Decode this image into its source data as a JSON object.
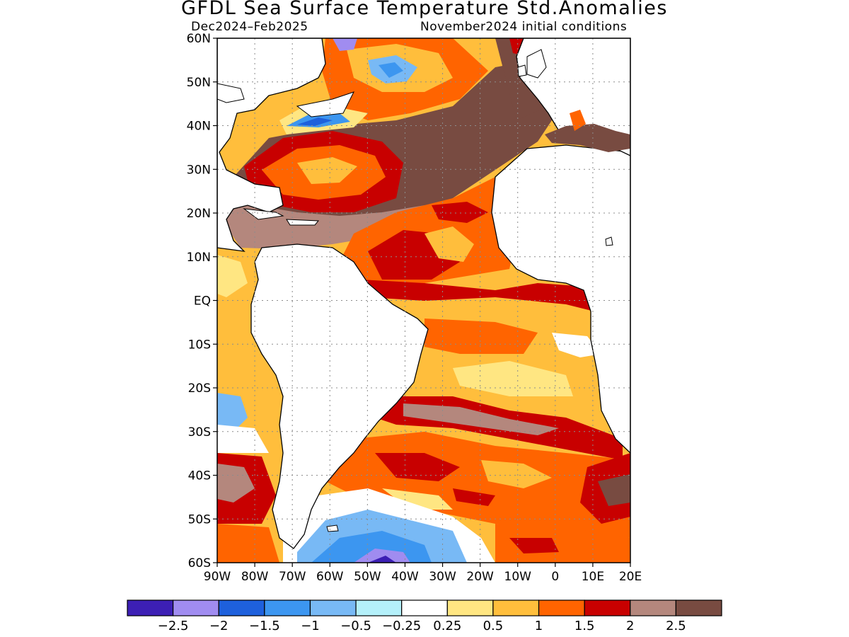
{
  "title": "GFDL Sea Surface Temperature Std.Anomalies",
  "season": "Dec2024–Feb2025",
  "init": "November2024 initial conditions",
  "map": {
    "lon_labels": [
      "90W",
      "80W",
      "70W",
      "60W",
      "50W",
      "40W",
      "30W",
      "20W",
      "10W",
      "0",
      "10E",
      "20E"
    ],
    "lat_labels": [
      "60N",
      "50N",
      "40N",
      "30N",
      "20N",
      "10N",
      "EQ",
      "10S",
      "20S",
      "30S",
      "40S",
      "50S",
      "60S"
    ],
    "lon_range": [
      -90,
      20
    ],
    "lat_range": [
      -60,
      60
    ],
    "grid": "dotted"
  },
  "colorbar": {
    "colors": [
      "#3c1fb4",
      "#a08cf0",
      "#1e60dc",
      "#3c96f0",
      "#78b9f5",
      "#b4f0fa",
      "#ffffff",
      "#ffe682",
      "#ffbe3c",
      "#ff6400",
      "#c80000",
      "#b4877d",
      "#784b41"
    ],
    "labels": [
      "−2.5",
      "−2",
      "−1.5",
      "−1",
      "−0.5",
      "−0.25",
      "0.25",
      "0.5",
      "1",
      "1.5",
      "2",
      "2.5"
    ]
  },
  "legend": {
    "colors": {
      "land": "#ffffff",
      "very_strong_pos": "#784b41",
      "strong_pos": "#b4877d",
      "pos_2": "#c80000",
      "pos_15": "#ff6400",
      "pos_1": "#ffbe3c",
      "pos_05": "#ffe682",
      "neutral": "#ffffff",
      "neg_025": "#b4f0fa",
      "neg_05": "#78b9f5",
      "neg_1": "#3c96f0",
      "neg_15": "#1e60dc",
      "neg_2": "#a08cf0",
      "neg_25": "#3c1fb4"
    }
  }
}
